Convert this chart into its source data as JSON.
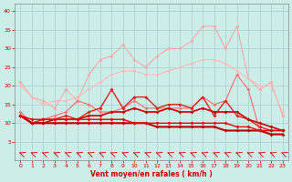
{
  "xlabel": "Vent moyen/en rafales ( km/h )",
  "bg_color": "#cceee8",
  "grid_color": "#aacccc",
  "xlim": [
    -0.5,
    23.5
  ],
  "ylim": [
    0,
    42
  ],
  "yticks": [
    5,
    10,
    15,
    20,
    25,
    30,
    35,
    40
  ],
  "xticks": [
    0,
    1,
    2,
    3,
    4,
    5,
    6,
    7,
    8,
    9,
    10,
    11,
    12,
    13,
    14,
    15,
    16,
    17,
    18,
    19,
    20,
    21,
    22,
    23
  ],
  "lines": [
    {
      "x": [
        0,
        1,
        2,
        3,
        4,
        5,
        6,
        7,
        8,
        9,
        10,
        11,
        12,
        13,
        14,
        15,
        16,
        17,
        18,
        19,
        20,
        21,
        22,
        23
      ],
      "y": [
        21,
        17,
        16,
        14,
        19,
        16,
        23,
        27,
        28,
        31,
        27,
        25,
        28,
        30,
        30,
        32,
        36,
        36,
        30,
        36,
        22,
        19,
        21,
        12
      ],
      "color": "#ffaaaa",
      "lw": 0.8,
      "marker": "D",
      "ms": 2.0
    },
    {
      "x": [
        0,
        1,
        2,
        3,
        4,
        5,
        6,
        7,
        8,
        9,
        10,
        11,
        12,
        13,
        14,
        15,
        16,
        17,
        18,
        19,
        20,
        21,
        22,
        23
      ],
      "y": [
        20,
        17,
        15,
        16,
        16,
        17,
        19,
        21,
        23,
        24,
        24,
        23,
        23,
        24,
        25,
        26,
        27,
        27,
        26,
        24,
        22,
        20,
        20,
        13
      ],
      "color": "#ffbbbb",
      "lw": 0.8,
      "marker": "D",
      "ms": 2.0
    },
    {
      "x": [
        0,
        1,
        2,
        3,
        4,
        5,
        6,
        7,
        8,
        9,
        10,
        11,
        12,
        13,
        14,
        15,
        16,
        17,
        18,
        19,
        20,
        21,
        22,
        23
      ],
      "y": [
        13,
        10,
        11,
        12,
        13,
        16,
        15,
        13,
        13,
        14,
        16,
        14,
        14,
        14,
        14,
        14,
        17,
        15,
        16,
        23,
        19,
        8,
        8,
        8
      ],
      "color": "#ff7777",
      "lw": 0.9,
      "marker": "D",
      "ms": 2.0
    },
    {
      "x": [
        0,
        1,
        2,
        3,
        4,
        5,
        6,
        7,
        8,
        9,
        10,
        11,
        12,
        13,
        14,
        15,
        16,
        17,
        18,
        19,
        20,
        21,
        22,
        23
      ],
      "y": [
        12,
        10,
        11,
        11,
        12,
        11,
        13,
        14,
        19,
        14,
        17,
        17,
        14,
        15,
        15,
        14,
        17,
        12,
        16,
        12,
        11,
        9,
        8,
        8
      ],
      "color": "#dd2222",
      "lw": 1.0,
      "marker": "D",
      "ms": 2.0
    },
    {
      "x": [
        0,
        1,
        2,
        3,
        4,
        5,
        6,
        7,
        8,
        9,
        10,
        11,
        12,
        13,
        14,
        15,
        16,
        17,
        18,
        19,
        20,
        21,
        22,
        23
      ],
      "y": [
        12,
        10,
        10,
        11,
        11,
        11,
        12,
        12,
        13,
        13,
        14,
        13,
        13,
        14,
        13,
        13,
        14,
        13,
        13,
        13,
        11,
        10,
        9,
        8
      ],
      "color": "#cc0000",
      "lw": 1.2,
      "marker": "D",
      "ms": 2.0
    },
    {
      "x": [
        0,
        1,
        2,
        3,
        4,
        5,
        6,
        7,
        8,
        9,
        10,
        11,
        12,
        13,
        14,
        15,
        16,
        17,
        18,
        19,
        20,
        21,
        22,
        23
      ],
      "y": [
        12,
        10,
        10,
        10,
        10,
        10,
        10,
        10,
        10,
        10,
        10,
        10,
        9,
        9,
        9,
        9,
        9,
        9,
        8,
        8,
        8,
        8,
        7,
        7
      ],
      "color": "#bb0000",
      "lw": 1.5,
      "marker": "D",
      "ms": 2.0
    },
    {
      "x": [
        0,
        1,
        2,
        3,
        4,
        5,
        6,
        7,
        8,
        9,
        10,
        11,
        12,
        13,
        14,
        15,
        16,
        17,
        18,
        19,
        20,
        21,
        22,
        23
      ],
      "y": [
        12,
        11,
        11,
        11,
        11,
        11,
        11,
        11,
        11,
        11,
        10,
        10,
        10,
        10,
        10,
        10,
        10,
        10,
        10,
        9,
        9,
        8,
        8,
        8
      ],
      "color": "#ee0000",
      "lw": 1.0,
      "marker": "D",
      "ms": 2.0
    }
  ],
  "scatter_y": 1.8,
  "scatter_color": "#cc0000"
}
